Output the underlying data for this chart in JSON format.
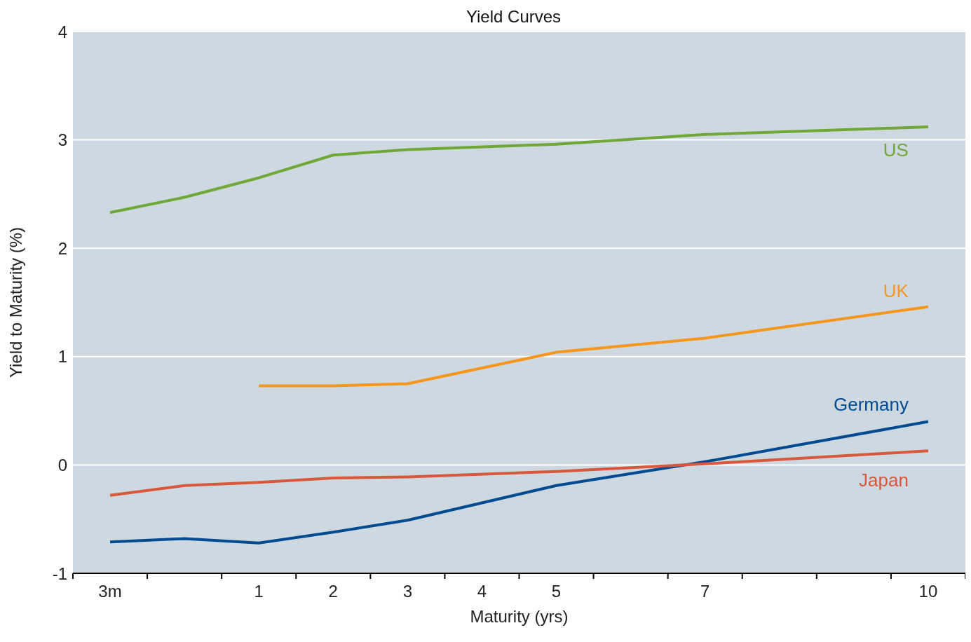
{
  "chart_data": {
    "type": "line",
    "title": "Yield Curves",
    "xlabel": "Maturity (yrs)",
    "ylabel": "Yield to Maturity (%)",
    "categories": [
      "3m",
      null,
      "1",
      "2",
      "3",
      "4",
      "5",
      null,
      "7",
      null,
      null,
      "10"
    ],
    "series": [
      {
        "name": "US",
        "color": "#70a737",
        "values": [
          2.33,
          2.47,
          2.65,
          2.86,
          2.91,
          null,
          2.96,
          null,
          3.05,
          null,
          null,
          3.12
        ]
      },
      {
        "name": "UK",
        "color": "#f7961d",
        "values": [
          null,
          null,
          0.73,
          0.73,
          0.75,
          null,
          1.04,
          null,
          1.17,
          null,
          null,
          1.46
        ]
      },
      {
        "name": "Germany",
        "color": "#004a8f",
        "values": [
          -0.71,
          -0.68,
          -0.72,
          -0.62,
          -0.51,
          null,
          -0.19,
          null,
          0.03,
          null,
          null,
          0.4
        ]
      },
      {
        "name": "Japan",
        "color": "#d9573a",
        "values": [
          -0.28,
          -0.19,
          -0.16,
          -0.12,
          -0.11,
          null,
          -0.06,
          null,
          0.01,
          null,
          null,
          0.13
        ]
      }
    ],
    "ylim": [
      -1,
      4
    ],
    "yticks": [
      -1,
      0,
      1,
      2,
      3,
      4
    ],
    "grid": "y",
    "marker": "none",
    "line_style": "solid"
  }
}
